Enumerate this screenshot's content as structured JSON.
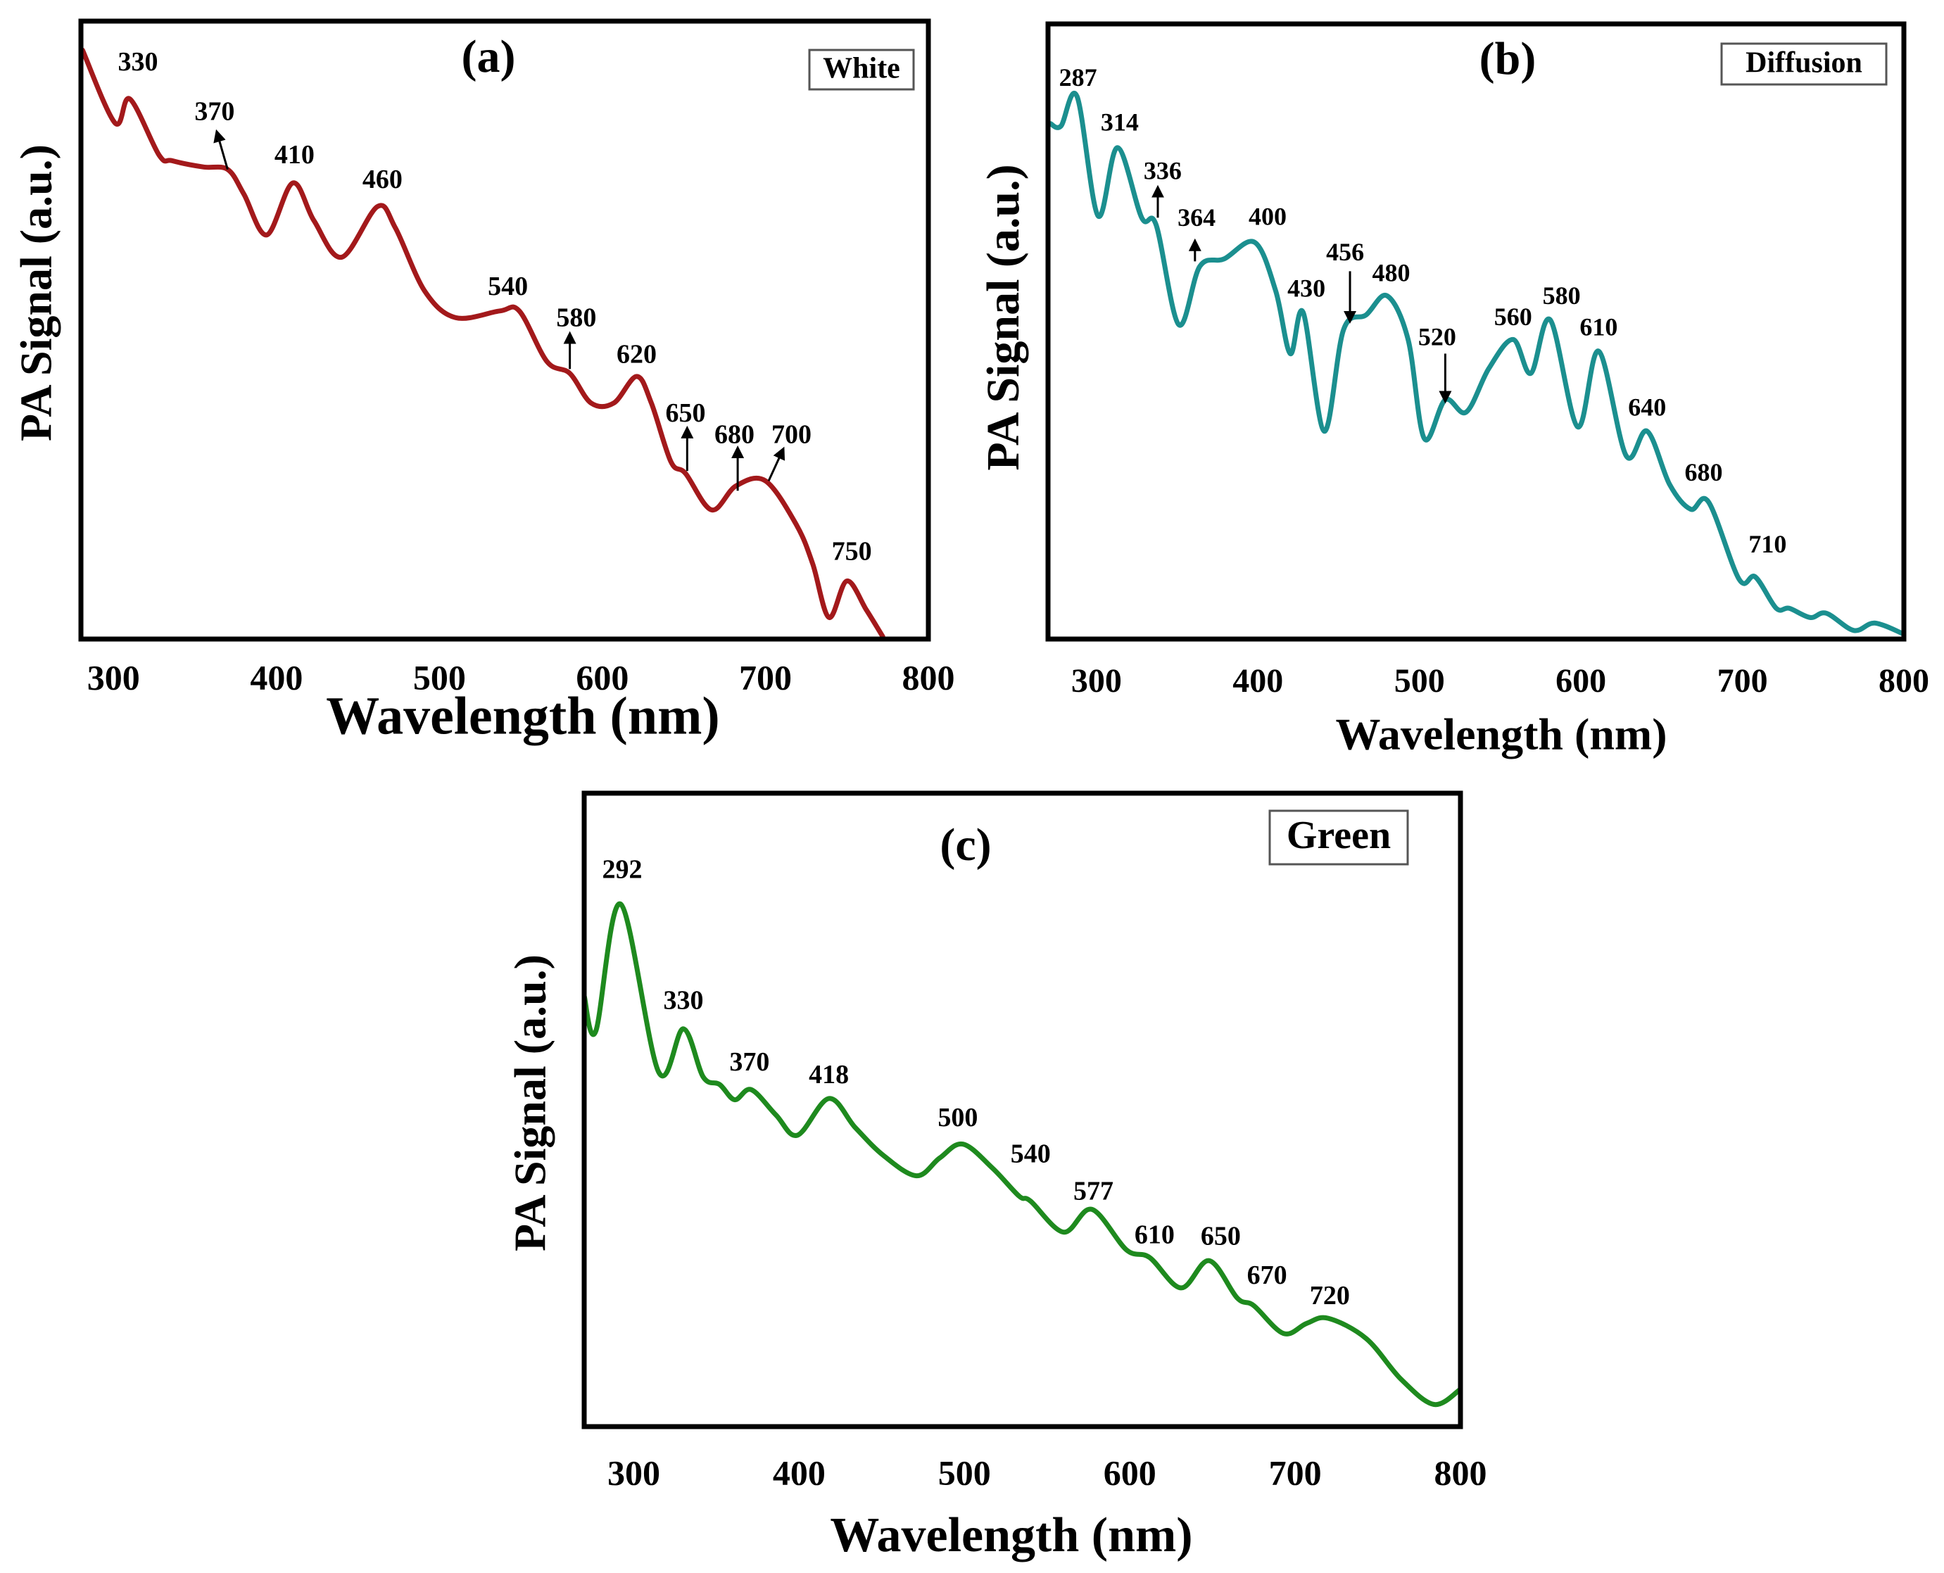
{
  "chart_data": [
    {
      "type": "line",
      "panel_label": "(a)",
      "legend": "White",
      "xlabel": "Wavelength (nm)",
      "ylabel": "PA Signal (a.u.)",
      "xlim": [
        280,
        800
      ],
      "ylim": [
        0,
        100
      ],
      "xticks": [
        "300",
        "400",
        "500",
        "600",
        "700",
        "800"
      ],
      "color": "#a3191b",
      "x": [
        281,
        301,
        310,
        328,
        336,
        355,
        370,
        380,
        394,
        410,
        423,
        440,
        462,
        473,
        491,
        510,
        537,
        549,
        566,
        580,
        593,
        607,
        621,
        630,
        642,
        651,
        667,
        682,
        700,
        719,
        729,
        739,
        750,
        762,
        772
      ],
      "y": [
        95.3,
        83.5,
        87.4,
        78.3,
        77.4,
        76.4,
        76,
        72,
        65.4,
        73.8,
        67.7,
        61.8,
        70,
        66.5,
        56.3,
        52,
        53.1,
        53.1,
        44.9,
        43,
        38.2,
        38.2,
        42.5,
        38.2,
        28.7,
        26.8,
        20.9,
        24.8,
        25.6,
        18.5,
        12.2,
        3.5,
        9.4,
        4.7,
        0.4
      ],
      "annotations": [
        {
          "text": "330",
          "x": 315,
          "y": 93
        },
        {
          "text": "370",
          "x": 362,
          "y": 85,
          "arrow": [
            370,
            76,
            364,
            81.5
          ]
        },
        {
          "text": "410",
          "x": 411,
          "y": 78
        },
        {
          "text": "460",
          "x": 465,
          "y": 74
        },
        {
          "text": "540",
          "x": 542,
          "y": 56.7
        },
        {
          "text": "580",
          "x": 584,
          "y": 51.6,
          "arrow": [
            580,
            43.7,
            580,
            48.8
          ]
        },
        {
          "text": "620",
          "x": 621,
          "y": 45.7
        },
        {
          "text": "650",
          "x": 651,
          "y": 36.2,
          "arrow": [
            652,
            27.2,
            652,
            33.5
          ]
        },
        {
          "text": "680",
          "x": 681,
          "y": 32.7,
          "arrow": [
            683,
            24,
            683,
            30.3
          ]
        },
        {
          "text": "700",
          "x": 716,
          "y": 32.7,
          "arrow": [
            702,
            25.6,
            710,
            30.2
          ]
        },
        {
          "text": "750",
          "x": 753,
          "y": 13.8
        }
      ]
    },
    {
      "type": "line",
      "panel_label": "(b)",
      "legend": "Diffusion",
      "xlabel": "Wavelength (nm)",
      "ylabel": "PA Signal (a.u.)",
      "xlim": [
        270,
        800
      ],
      "ylim": [
        0,
        100
      ],
      "xticks": [
        "300",
        "400",
        "500",
        "600",
        "700",
        "800"
      ],
      "color": "#1b8f8f",
      "x": [
        271.5,
        278,
        288,
        301,
        313,
        328,
        337,
        351,
        364,
        379,
        398,
        411,
        420,
        428,
        441,
        453,
        467,
        480,
        493,
        503,
        516,
        529,
        543,
        558,
        569,
        581,
        598,
        611,
        628,
        641,
        655,
        668,
        679,
        698,
        708,
        721,
        729,
        742,
        752,
        769,
        782,
        800
      ],
      "y": [
        83.8,
        83.4,
        88.2,
        68.8,
        79.9,
        68.5,
        67.3,
        51.1,
        60.6,
        61.8,
        64.5,
        56.6,
        46.4,
        53.1,
        33.8,
        50.3,
        52.7,
        55.8,
        48.7,
        32.6,
        38.9,
        36.9,
        44,
        48.7,
        43.2,
        51.9,
        34.5,
        46.8,
        29.8,
        33.8,
        25.1,
        21.1,
        22.3,
        9.7,
        10.1,
        5,
        5,
        3.5,
        4.2,
        1.4,
        2.6,
        0.8
      ],
      "annotations": [
        {
          "text": "287",
          "x": 288.6,
          "y": 90.9
        },
        {
          "text": "314",
          "x": 314.4,
          "y": 83.6
        },
        {
          "text": "336",
          "x": 341,
          "y": 75.7,
          "arrow": [
            338,
            68.5,
            338,
            72.8
          ]
        },
        {
          "text": "364",
          "x": 362,
          "y": 68.1,
          "arrow": [
            361,
            61.4,
            361,
            64.1
          ]
        },
        {
          "text": "400",
          "x": 406,
          "y": 68.3
        },
        {
          "text": "430",
          "x": 430,
          "y": 56.6
        },
        {
          "text": "456",
          "x": 454,
          "y": 62.5,
          "arrow": [
            457,
            59.8,
            457,
            52.3
          ]
        },
        {
          "text": "480",
          "x": 482.5,
          "y": 59.1
        },
        {
          "text": "520",
          "x": 511,
          "y": 48.7,
          "arrow": [
            516,
            46.4,
            516,
            39.3
          ]
        },
        {
          "text": "560",
          "x": 558,
          "y": 52
        },
        {
          "text": "580",
          "x": 588,
          "y": 55.4
        },
        {
          "text": "610",
          "x": 611,
          "y": 50.3
        },
        {
          "text": "640",
          "x": 641,
          "y": 37.3
        },
        {
          "text": "680",
          "x": 676,
          "y": 26.7
        },
        {
          "text": "710",
          "x": 715.6,
          "y": 15
        }
      ]
    },
    {
      "type": "line",
      "panel_label": "(c)",
      "legend": "Green",
      "xlabel": "Wavelength (nm)",
      "ylabel": "PA Signal (a.u.)",
      "xlim": [
        270,
        800
      ],
      "ylim": [
        0,
        100
      ],
      "xticks": [
        "300",
        "400",
        "500",
        "600",
        "700",
        "800"
      ],
      "color": "#1e8a1e",
      "x": [
        270,
        277,
        292,
        315,
        330,
        342,
        352,
        361,
        371,
        386,
        399,
        418,
        434,
        451,
        471,
        485,
        499,
        517,
        533,
        540,
        560,
        577,
        598,
        612,
        631,
        648,
        665,
        675,
        693,
        707,
        720,
        743,
        764,
        784,
        800
      ],
      "y": [
        68,
        62.4,
        82.5,
        56,
        62.8,
        55.2,
        54,
        51.6,
        53.2,
        49.2,
        46,
        51.8,
        47.2,
        42.8,
        39.6,
        42.4,
        44.6,
        40.8,
        36.4,
        35.6,
        30.7,
        34.3,
        27.9,
        26.7,
        21.9,
        26.2,
        20.3,
        19.1,
        14.7,
        16.3,
        17.1,
        13.9,
        7.5,
        3.5,
        5.9
      ],
      "annotations": [
        {
          "text": "292",
          "x": 293,
          "y": 87.6
        },
        {
          "text": "330",
          "x": 330,
          "y": 66.9
        },
        {
          "text": "370",
          "x": 370,
          "y": 57.2
        },
        {
          "text": "418",
          "x": 418,
          "y": 55.2
        },
        {
          "text": "500",
          "x": 496,
          "y": 48.4
        },
        {
          "text": "540",
          "x": 540,
          "y": 42.7
        },
        {
          "text": "577",
          "x": 578,
          "y": 36.8
        },
        {
          "text": "610",
          "x": 615,
          "y": 29.9
        },
        {
          "text": "650",
          "x": 655,
          "y": 29.7
        },
        {
          "text": "670",
          "x": 683,
          "y": 23.5
        },
        {
          "text": "720",
          "x": 721,
          "y": 20.3
        }
      ]
    }
  ]
}
